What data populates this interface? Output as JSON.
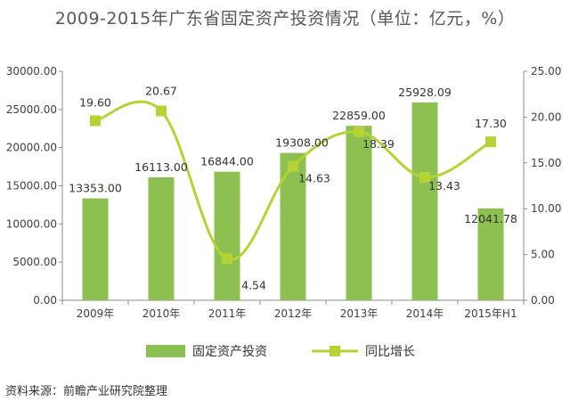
{
  "chart_data": {
    "type": "bar",
    "title": "2009-2015年广东省固定资产投资情况（单位：亿元，%）",
    "categories": [
      "2009年",
      "2010年",
      "2011年",
      "2012年",
      "2013年",
      "2014年",
      "2015年H1"
    ],
    "series": [
      {
        "name": "固定资产投资",
        "type": "bar",
        "axis": "left",
        "color": "#8CC152",
        "values": [
          13353.0,
          16113.0,
          16844.0,
          19308.0,
          22859.0,
          25928.09,
          12041.78
        ],
        "labels": [
          "13353.00",
          "16113.00",
          "16844.00",
          "19308.00",
          "22859.00",
          "25928.09",
          "12041.78"
        ]
      },
      {
        "name": "同比增长",
        "type": "line",
        "axis": "right",
        "smooth": true,
        "color": "#B5D334",
        "values": [
          19.6,
          20.67,
          4.54,
          14.63,
          18.39,
          13.43,
          17.3
        ],
        "labels": [
          "19.60",
          "20.67",
          "4.54",
          "14.63",
          "18.39",
          "13.43",
          "17.30"
        ]
      }
    ],
    "y_left": {
      "min": 0,
      "max": 30000,
      "ticks": [
        "0.00",
        "5000.00",
        "10000.00",
        "15000.00",
        "20000.00",
        "25000.00",
        "30000.00"
      ]
    },
    "y_right": {
      "min": 0,
      "max": 25,
      "ticks": [
        "0.00",
        "5.00",
        "10.00",
        "15.00",
        "20.00",
        "25.00"
      ]
    },
    "grid": false,
    "legend": "bottom"
  },
  "source": "资料来源：前瞻产业研究院整理"
}
